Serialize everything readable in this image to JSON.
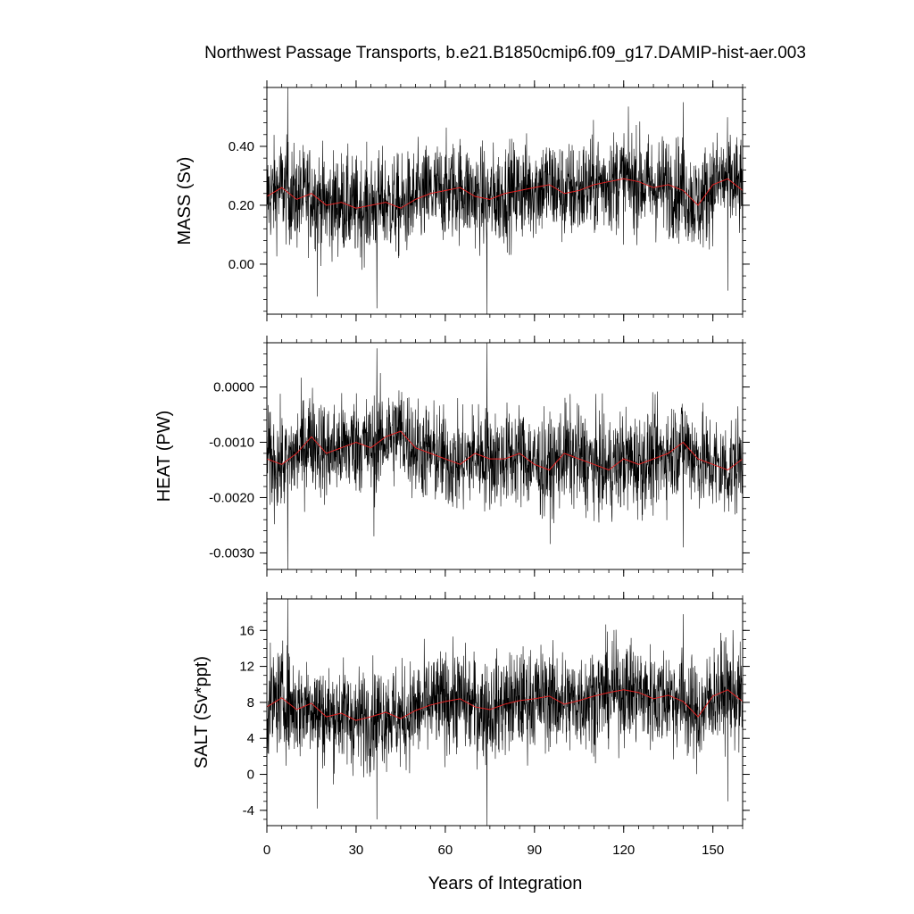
{
  "title": "Northwest Passage Transports, b.e21.B1850cmip6.f09_g17.DAMIP-hist-aer.003",
  "colors": {
    "raw": "#000000",
    "smooth": "#e02020",
    "frame": "#000000"
  },
  "chart_data": [
    {
      "type": "line",
      "panel": "MASS",
      "ylabel": "MASS (Sv)",
      "xlim": [
        0,
        160
      ],
      "ylim": [
        -0.17,
        0.6
      ],
      "yticks": [
        0.0,
        0.2,
        0.4
      ],
      "ytick_labels": [
        "0.00",
        "0.20",
        "0.40"
      ],
      "yminor_step": 0.04,
      "series": [
        {
          "style": "monthly-raw",
          "mean": 0.235,
          "noise": 0.085,
          "extremes": [
            [
              7,
              0.6
            ],
            [
              37,
              -0.15
            ],
            [
              74,
              -0.17
            ],
            [
              17,
              -0.11
            ],
            [
              155,
              -0.09
            ],
            [
              140,
              0.55
            ]
          ]
        },
        {
          "style": "smoothed",
          "color": "#e02020",
          "x": [
            0,
            5,
            10,
            15,
            20,
            25,
            30,
            35,
            40,
            45,
            50,
            55,
            60,
            65,
            70,
            75,
            80,
            85,
            90,
            95,
            100,
            105,
            110,
            115,
            120,
            125,
            130,
            135,
            140,
            145,
            150,
            155,
            160
          ],
          "y": [
            0.23,
            0.26,
            0.22,
            0.24,
            0.2,
            0.21,
            0.19,
            0.2,
            0.21,
            0.19,
            0.22,
            0.24,
            0.25,
            0.26,
            0.23,
            0.22,
            0.24,
            0.25,
            0.26,
            0.27,
            0.24,
            0.25,
            0.27,
            0.28,
            0.29,
            0.28,
            0.26,
            0.27,
            0.25,
            0.2,
            0.27,
            0.29,
            0.25
          ]
        }
      ]
    },
    {
      "type": "line",
      "panel": "HEAT",
      "ylabel": "HEAT (PW)",
      "xlim": [
        0,
        160
      ],
      "ylim": [
        -0.0033,
        0.0008
      ],
      "yticks": [
        -0.003,
        -0.002,
        -0.001,
        0.0
      ],
      "ytick_labels": [
        "-0.0030",
        "-0.0020",
        "-0.0010",
        "0.0000"
      ],
      "yminor_step": 0.0002,
      "series": [
        {
          "style": "monthly-raw",
          "mean": -0.00125,
          "noise": 0.00045,
          "extremes": [
            [
              7,
              -0.0033
            ],
            [
              74,
              0.0008
            ],
            [
              37,
              0.0007
            ],
            [
              36,
              -0.0027
            ],
            [
              140,
              -0.0029
            ]
          ]
        },
        {
          "style": "smoothed",
          "color": "#e02020",
          "x": [
            0,
            5,
            10,
            15,
            20,
            25,
            30,
            35,
            40,
            45,
            50,
            55,
            60,
            65,
            70,
            75,
            80,
            85,
            90,
            95,
            100,
            105,
            110,
            115,
            120,
            125,
            130,
            135,
            140,
            145,
            150,
            155,
            160
          ],
          "y": [
            -0.0013,
            -0.0014,
            -0.0012,
            -0.0009,
            -0.0012,
            -0.0011,
            -0.001,
            -0.0011,
            -0.0009,
            -0.0008,
            -0.0011,
            -0.0012,
            -0.0013,
            -0.0014,
            -0.0012,
            -0.0013,
            -0.0013,
            -0.0012,
            -0.0014,
            -0.0015,
            -0.0012,
            -0.0013,
            -0.0014,
            -0.0015,
            -0.0013,
            -0.0014,
            -0.0013,
            -0.0012,
            -0.001,
            -0.0013,
            -0.0014,
            -0.0015,
            -0.0013
          ]
        }
      ]
    },
    {
      "type": "line",
      "panel": "SALT",
      "ylabel": "SALT (Sv*ppt)",
      "xlim": [
        0,
        160
      ],
      "ylim": [
        -5.7,
        19.5
      ],
      "yticks": [
        -4,
        0,
        4,
        8,
        12,
        16
      ],
      "ytick_labels": [
        "-4",
        "0",
        "4",
        "8",
        "12",
        "16"
      ],
      "yminor_step": 1,
      "series": [
        {
          "style": "monthly-raw",
          "mean": 7.8,
          "noise": 2.8,
          "extremes": [
            [
              7,
              19.5
            ],
            [
              37,
              -5.0
            ],
            [
              74,
              -5.7
            ],
            [
              17,
              -3.8
            ],
            [
              155,
              -3.0
            ],
            [
              140,
              17.8
            ]
          ]
        },
        {
          "style": "smoothed",
          "color": "#e02020",
          "x": [
            0,
            5,
            10,
            15,
            20,
            25,
            30,
            35,
            40,
            45,
            50,
            55,
            60,
            65,
            70,
            75,
            80,
            85,
            90,
            95,
            100,
            105,
            110,
            115,
            120,
            125,
            130,
            135,
            140,
            145,
            150,
            155,
            160
          ],
          "y": [
            7.5,
            8.5,
            7.2,
            7.9,
            6.4,
            6.8,
            6.0,
            6.4,
            6.9,
            6.2,
            7.1,
            7.7,
            8.1,
            8.4,
            7.5,
            7.2,
            7.8,
            8.2,
            8.4,
            8.7,
            7.8,
            8.2,
            8.7,
            9.1,
            9.4,
            9.1,
            8.4,
            8.8,
            8.1,
            6.4,
            8.7,
            9.4,
            8.1
          ]
        }
      ]
    }
  ],
  "xaxis": {
    "label": "Years of Integration",
    "ticks": [
      0,
      30,
      60,
      90,
      120,
      150
    ],
    "tick_labels": [
      "0",
      "30",
      "60",
      "90",
      "120",
      "150"
    ],
    "minor_step": 5
  }
}
